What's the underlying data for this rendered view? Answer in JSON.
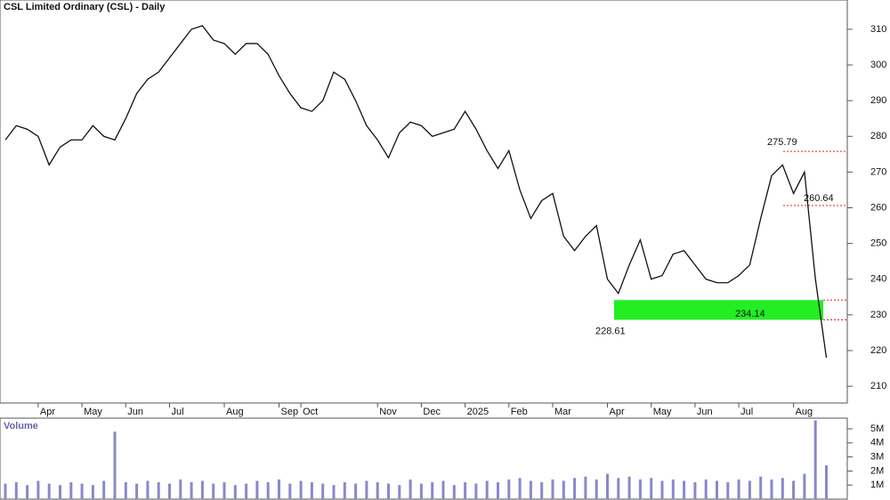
{
  "chart_data": [
    {
      "type": "line",
      "title": "CSL Limited Ordinary (CSL) - Daily",
      "color": "#111111",
      "categories": [
        null,
        null,
        null,
        "Apr",
        null,
        null,
        null,
        "May",
        null,
        null,
        null,
        "Jun",
        null,
        null,
        null,
        "Jul",
        null,
        null,
        null,
        null,
        "Aug",
        null,
        null,
        null,
        null,
        "Sep",
        null,
        "Oct",
        null,
        null,
        null,
        null,
        null,
        null,
        "Nov",
        null,
        null,
        null,
        "Dec",
        null,
        null,
        null,
        "2025",
        null,
        null,
        null,
        "Feb",
        null,
        null,
        null,
        "Mar",
        null,
        null,
        null,
        null,
        "Apr",
        null,
        null,
        null,
        "May",
        null,
        null,
        null,
        "Jun",
        null,
        null,
        null,
        "Jul",
        null,
        null,
        null,
        null,
        "Aug",
        null,
        null,
        null
      ],
      "values": [
        279,
        283,
        282,
        280,
        272,
        277,
        279,
        279,
        283,
        280,
        279,
        285,
        292,
        296,
        298,
        302,
        306,
        310,
        311,
        307,
        306,
        303,
        306,
        306,
        303,
        297,
        292,
        288,
        287,
        290,
        298,
        296,
        290,
        283,
        279,
        274,
        281,
        284,
        283,
        280,
        281,
        282,
        287,
        282,
        276,
        271,
        276,
        265,
        257,
        262,
        264,
        252,
        248,
        252,
        255,
        240,
        236,
        244,
        251,
        240,
        241,
        247,
        248,
        244,
        240,
        239,
        239,
        241,
        244,
        257,
        269,
        272,
        264,
        270,
        240,
        218
      ],
      "ylim": [
        205.3,
        318.2
      ],
      "yticks": [
        210,
        220,
        230,
        240,
        250,
        260,
        270,
        280,
        290,
        300,
        310
      ],
      "annotations": [
        275.79,
        260.64,
        234.14,
        228.61
      ],
      "zone_color": "#22ee22",
      "level_color": "#dd2222"
    },
    {
      "type": "bar",
      "title": "Volume",
      "color": "#8888cc",
      "values": [
        1100000,
        1200000,
        1000000,
        1300000,
        1100000,
        1000000,
        1200000,
        1100000,
        1000000,
        1300000,
        4800000,
        1200000,
        1100000,
        1300000,
        1200000,
        1100000,
        1400000,
        1200000,
        1300000,
        1100000,
        1200000,
        1000000,
        1100000,
        1300000,
        1200000,
        1400000,
        1100000,
        1300000,
        1200000,
        1100000,
        1000000,
        1200000,
        1100000,
        1300000,
        1200000,
        1100000,
        1000000,
        1400000,
        1100000,
        1200000,
        1300000,
        1000000,
        1200000,
        1100000,
        1300000,
        1200000,
        1400000,
        1500000,
        1300000,
        1200000,
        1400000,
        1300000,
        1500000,
        1600000,
        1400000,
        1800000,
        1500000,
        1600000,
        1400000,
        1500000,
        1300000,
        1400000,
        1300000,
        1200000,
        1400000,
        1300000,
        1200000,
        1400000,
        1300000,
        1600000,
        1400000,
        1500000,
        1300000,
        1800000,
        5600000,
        2400000
      ],
      "ylim": [
        0,
        5760000
      ],
      "yticks": [
        {
          "value": 1000000,
          "label": "1M"
        },
        {
          "value": 2000000,
          "label": "2M"
        },
        {
          "value": 3000000,
          "label": "3M"
        },
        {
          "value": 4000000,
          "label": "4M"
        },
        {
          "value": 5000000,
          "label": "5M"
        }
      ]
    }
  ]
}
